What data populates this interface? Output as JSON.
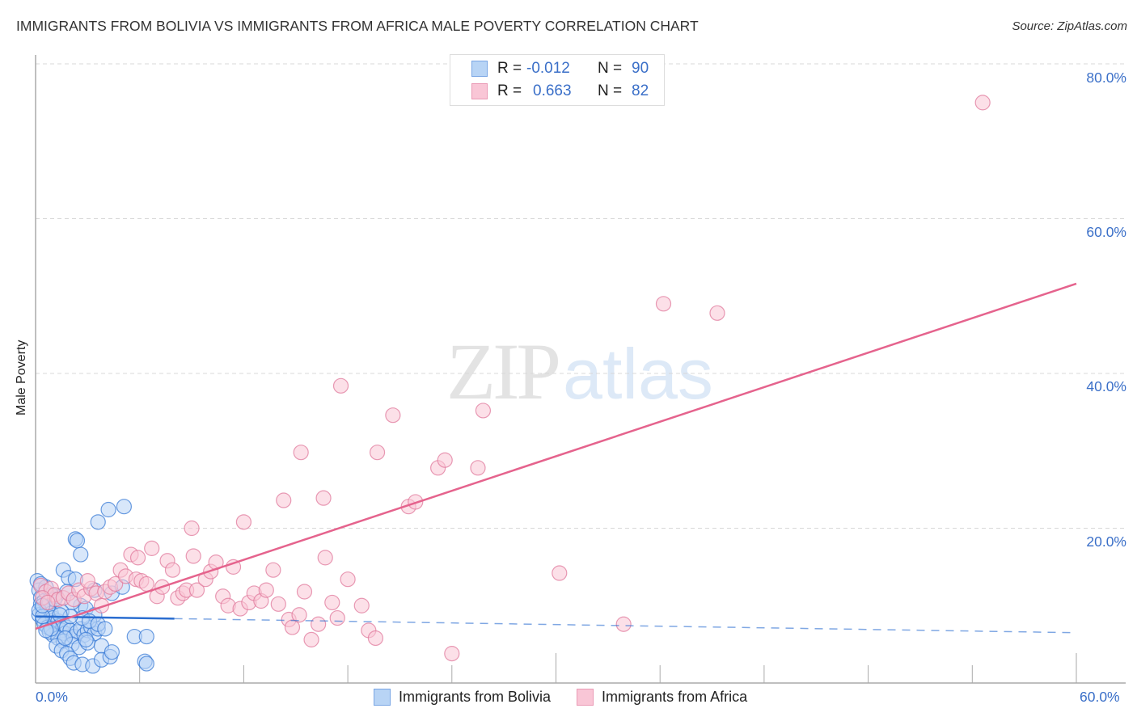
{
  "header": {
    "title": "IMMIGRANTS FROM BOLIVIA VS IMMIGRANTS FROM AFRICA MALE POVERTY CORRELATION CHART",
    "source": "Source: ZipAtlas.com"
  },
  "watermark": {
    "zip": "ZIP",
    "atlas": "atlas"
  },
  "colors": {
    "bolivia_fill": "#b8d4f5",
    "bolivia_stroke": "#3a7bd5",
    "bolivia_line": "#2a6dd0",
    "africa_fill": "#f9c6d6",
    "africa_stroke": "#e07a9c",
    "africa_line": "#e5638d",
    "axis_text": "#3a6fc8",
    "grid": "#d8d8d8"
  },
  "legend": {
    "rows": [
      {
        "r_label": "R =",
        "r_value": "-0.012",
        "n_label": "N =",
        "n_value": "90"
      },
      {
        "r_label": "R =",
        "r_value": "0.663",
        "n_label": "N =",
        "n_value": "82"
      }
    ]
  },
  "axes": {
    "ylabel": "Male Poverty",
    "y_ticks": [
      "80.0%",
      "60.0%",
      "40.0%",
      "20.0%"
    ],
    "x_ticks": [
      "0.0%",
      "60.0%"
    ]
  },
  "bottom_legend": {
    "items": [
      "Immigrants from Bolivia",
      "Immigrants from Africa"
    ]
  },
  "chart_data": {
    "type": "scatter",
    "title": "IMMIGRANTS FROM BOLIVIA VS IMMIGRANTS FROM AFRICA MALE POVERTY CORRELATION CHART",
    "xlabel": "",
    "ylabel": "Male Poverty",
    "xlim": [
      0,
      60
    ],
    "ylim": [
      0,
      80
    ],
    "x_tick_labels": [
      "0.0%",
      "60.0%"
    ],
    "y_tick_labels": [
      "20.0%",
      "40.0%",
      "60.0%",
      "80.0%"
    ],
    "grid": true,
    "legend_position": "bottom",
    "series": [
      {
        "name": "Immigrants from Bolivia",
        "R": -0.012,
        "N": 90,
        "trend": {
          "x": [
            0,
            60
          ],
          "y": [
            8.6,
            6.5
          ],
          "solid_until_x": 8
        },
        "points": [
          [
            0.1,
            13.2
          ],
          [
            0.2,
            12.0
          ],
          [
            0.3,
            11.0
          ],
          [
            0.3,
            10.2
          ],
          [
            0.4,
            9.6
          ],
          [
            0.5,
            10.6
          ],
          [
            0.6,
            9.2
          ],
          [
            0.2,
            8.8
          ],
          [
            0.4,
            8.2
          ],
          [
            0.7,
            9.8
          ],
          [
            0.8,
            10.4
          ],
          [
            0.9,
            9.0
          ],
          [
            1.0,
            8.4
          ],
          [
            0.5,
            7.6
          ],
          [
            0.7,
            7.2
          ],
          [
            1.1,
            7.8
          ],
          [
            1.2,
            7.0
          ],
          [
            1.3,
            8.0
          ],
          [
            1.4,
            7.4
          ],
          [
            1.5,
            6.8
          ],
          [
            1.6,
            7.6
          ],
          [
            1.7,
            6.4
          ],
          [
            1.8,
            7.2
          ],
          [
            2.0,
            6.8
          ],
          [
            1.0,
            6.2
          ],
          [
            0.8,
            6.6
          ],
          [
            1.3,
            5.8
          ],
          [
            1.6,
            5.4
          ],
          [
            2.2,
            6.0
          ],
          [
            2.4,
            6.6
          ],
          [
            2.6,
            7.0
          ],
          [
            2.8,
            6.2
          ],
          [
            3.0,
            6.8
          ],
          [
            3.2,
            7.2
          ],
          [
            3.4,
            6.4
          ],
          [
            3.6,
            7.0
          ],
          [
            2.1,
            5.0
          ],
          [
            2.5,
            4.6
          ],
          [
            3.0,
            5.2
          ],
          [
            3.8,
            4.8
          ],
          [
            1.2,
            4.8
          ],
          [
            1.5,
            4.2
          ],
          [
            1.8,
            3.8
          ],
          [
            2.0,
            3.2
          ],
          [
            2.2,
            2.6
          ],
          [
            2.7,
            2.4
          ],
          [
            3.3,
            2.2
          ],
          [
            3.8,
            3.0
          ],
          [
            4.3,
            3.4
          ],
          [
            4.4,
            4.0
          ],
          [
            5.7,
            6.0
          ],
          [
            6.4,
            6.0
          ],
          [
            6.3,
            2.8
          ],
          [
            6.4,
            2.5
          ],
          [
            1.6,
            14.6
          ],
          [
            1.9,
            13.6
          ],
          [
            2.3,
            13.4
          ],
          [
            2.6,
            16.6
          ],
          [
            2.3,
            18.6
          ],
          [
            2.4,
            18.4
          ],
          [
            3.6,
            20.8
          ],
          [
            4.2,
            22.4
          ],
          [
            5.1,
            22.8
          ],
          [
            2.6,
            10.0
          ],
          [
            3.4,
            12.0
          ],
          [
            4.4,
            11.6
          ],
          [
            5.0,
            12.4
          ],
          [
            1.2,
            11.2
          ],
          [
            1.8,
            11.8
          ],
          [
            2.1,
            10.4
          ],
          [
            2.9,
            9.6
          ],
          [
            3.4,
            8.8
          ],
          [
            0.9,
            11.4
          ],
          [
            1.1,
            10.8
          ],
          [
            0.6,
            12.4
          ],
          [
            0.3,
            12.8
          ],
          [
            0.2,
            9.4
          ],
          [
            0.4,
            8.6
          ],
          [
            1.5,
            9.2
          ],
          [
            2.7,
            8.4
          ],
          [
            3.1,
            8.0
          ],
          [
            3.6,
            7.6
          ],
          [
            4.0,
            7.0
          ],
          [
            2.0,
            8.6
          ],
          [
            1.4,
            8.8
          ],
          [
            0.9,
            7.0
          ],
          [
            0.6,
            6.8
          ],
          [
            1.7,
            5.8
          ],
          [
            2.9,
            5.6
          ],
          [
            0.4,
            10.0
          ]
        ]
      },
      {
        "name": "Immigrants from Africa",
        "R": 0.663,
        "N": 82,
        "trend": {
          "x": [
            0,
            60
          ],
          "y": [
            7.0,
            51.6
          ]
        },
        "points": [
          [
            0.3,
            12.6
          ],
          [
            0.6,
            11.8
          ],
          [
            0.9,
            12.2
          ],
          [
            1.1,
            11.4
          ],
          [
            1.3,
            10.8
          ],
          [
            0.4,
            11.0
          ],
          [
            0.7,
            10.4
          ],
          [
            1.6,
            11.0
          ],
          [
            1.9,
            11.6
          ],
          [
            2.2,
            10.8
          ],
          [
            2.5,
            12.0
          ],
          [
            2.8,
            11.2
          ],
          [
            3.2,
            12.2
          ],
          [
            3.5,
            11.6
          ],
          [
            3.8,
            10.0
          ],
          [
            4.0,
            11.8
          ],
          [
            4.3,
            12.4
          ],
          [
            4.6,
            12.8
          ],
          [
            4.9,
            14.6
          ],
          [
            5.2,
            13.8
          ],
          [
            5.5,
            16.6
          ],
          [
            5.8,
            13.4
          ],
          [
            6.1,
            13.2
          ],
          [
            6.4,
            12.8
          ],
          [
            6.7,
            17.4
          ],
          [
            7.0,
            11.2
          ],
          [
            7.3,
            12.4
          ],
          [
            7.6,
            15.8
          ],
          [
            7.9,
            14.6
          ],
          [
            8.2,
            11.0
          ],
          [
            8.5,
            11.6
          ],
          [
            8.7,
            12.0
          ],
          [
            9.1,
            16.4
          ],
          [
            9.3,
            12.0
          ],
          [
            9.8,
            13.4
          ],
          [
            10.1,
            14.4
          ],
          [
            10.4,
            15.6
          ],
          [
            10.8,
            11.2
          ],
          [
            11.1,
            10.0
          ],
          [
            11.4,
            15.0
          ],
          [
            11.8,
            9.6
          ],
          [
            12.0,
            20.8
          ],
          [
            12.3,
            10.4
          ],
          [
            12.6,
            11.6
          ],
          [
            13.0,
            10.6
          ],
          [
            13.3,
            12.0
          ],
          [
            13.7,
            14.6
          ],
          [
            14.0,
            10.2
          ],
          [
            14.3,
            23.6
          ],
          [
            14.6,
            8.2
          ],
          [
            14.8,
            7.2
          ],
          [
            15.2,
            8.8
          ],
          [
            15.5,
            11.8
          ],
          [
            15.3,
            29.8
          ],
          [
            15.9,
            5.6
          ],
          [
            16.3,
            7.6
          ],
          [
            16.7,
            16.2
          ],
          [
            16.6,
            23.9
          ],
          [
            17.1,
            10.4
          ],
          [
            17.4,
            8.4
          ],
          [
            17.6,
            38.4
          ],
          [
            18.0,
            13.4
          ],
          [
            18.8,
            10.0
          ],
          [
            19.2,
            6.8
          ],
          [
            19.6,
            5.8
          ],
          [
            19.7,
            29.8
          ],
          [
            20.6,
            34.6
          ],
          [
            21.5,
            22.8
          ],
          [
            21.9,
            23.4
          ],
          [
            23.2,
            27.8
          ],
          [
            23.6,
            28.8
          ],
          [
            24.0,
            3.8
          ],
          [
            25.5,
            27.8
          ],
          [
            25.8,
            35.2
          ],
          [
            30.2,
            14.2
          ],
          [
            33.9,
            7.6
          ],
          [
            36.2,
            49.0
          ],
          [
            39.3,
            47.8
          ],
          [
            54.6,
            75.0
          ],
          [
            5.9,
            16.2
          ],
          [
            9.0,
            20.0
          ],
          [
            3.0,
            13.2
          ]
        ]
      }
    ]
  }
}
